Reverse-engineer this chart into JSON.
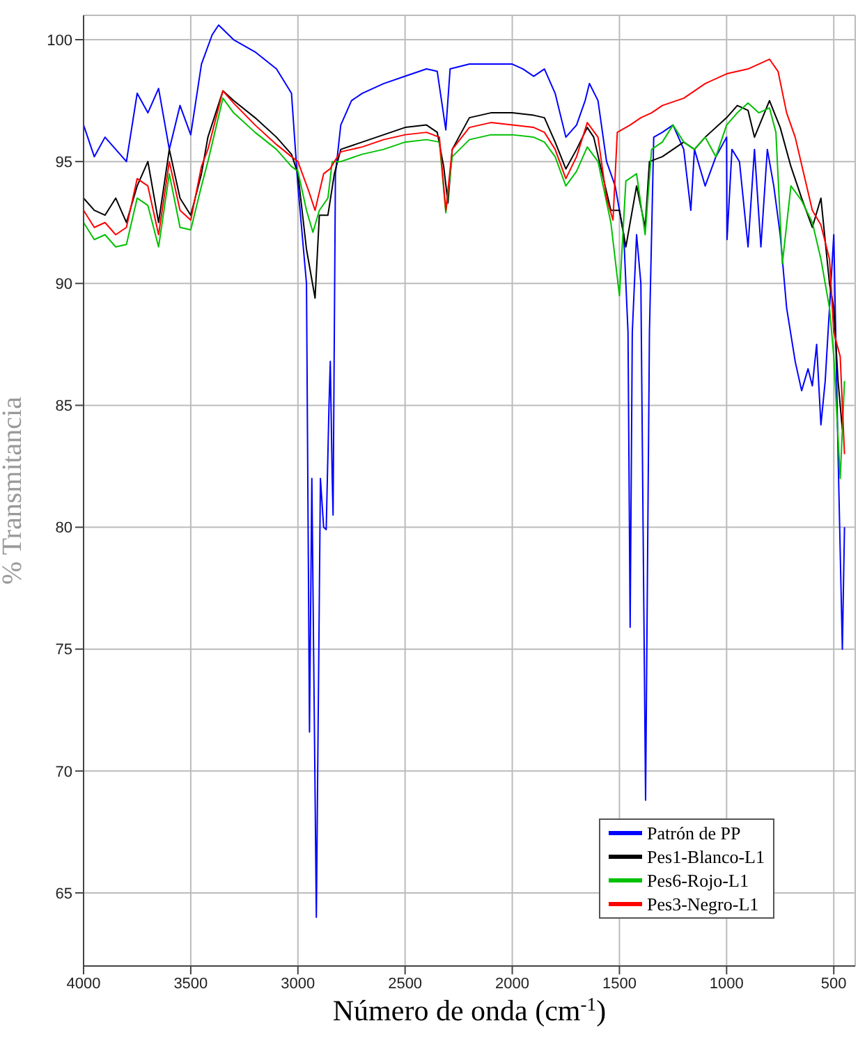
{
  "chart_data": {
    "type": "line",
    "xlabel": "Número de onda (cm$^{-1}$)",
    "ylabel": "% Transmitancia",
    "xlim": [
      4000,
      400
    ],
    "xticks": [
      4000,
      3500,
      3000,
      2500,
      2000,
      1500,
      1000,
      500
    ],
    "ylim": [
      62,
      101
    ],
    "yticks": [
      65,
      70,
      75,
      80,
      85,
      90,
      95,
      100
    ],
    "grid": true,
    "legend": "bottom right",
    "marker": "none",
    "line_style": "solid",
    "series": [
      {
        "name": "Patrón de PP",
        "color": "#0000ff",
        "x": [
          4000,
          3950,
          3900,
          3850,
          3800,
          3750,
          3700,
          3650,
          3600,
          3550,
          3500,
          3450,
          3400,
          3370,
          3300,
          3200,
          3100,
          3030,
          3000,
          2960,
          2946,
          2935,
          2914,
          2895,
          2880,
          2868,
          2855,
          2849,
          2840,
          2836,
          2825,
          2800,
          2750,
          2700,
          2600,
          2500,
          2400,
          2350,
          2330,
          2310,
          2290,
          2200,
          2100,
          2000,
          1950,
          1900,
          1850,
          1800,
          1750,
          1700,
          1660,
          1640,
          1600,
          1560,
          1520,
          1480,
          1460,
          1450,
          1440,
          1420,
          1400,
          1378,
          1360,
          1340,
          1300,
          1250,
          1200,
          1167,
          1150,
          1100,
          1050,
          1000,
          998,
          975,
          940,
          900,
          870,
          840,
          810,
          780,
          750,
          720,
          680,
          650,
          620,
          600,
          580,
          560,
          540,
          500,
          480,
          460,
          450
        ],
        "values": [
          96.5,
          95.2,
          96,
          95.5,
          95,
          97.8,
          97,
          98,
          95.5,
          97.3,
          96.1,
          99,
          100.2,
          100.6,
          100,
          99.5,
          98.8,
          97.8,
          94,
          90,
          71.6,
          82,
          64,
          82,
          80,
          79.9,
          85,
          86.8,
          82,
          80.5,
          94.5,
          96.5,
          97.5,
          97.8,
          98.2,
          98.5,
          98.8,
          98.7,
          97.5,
          96.3,
          98.8,
          99,
          99,
          99,
          98.8,
          98.5,
          98.8,
          97.8,
          96,
          96.5,
          97.5,
          98.2,
          97.5,
          95,
          94,
          92,
          88,
          75.9,
          88,
          92,
          90,
          68.8,
          88,
          96,
          96.2,
          96.5,
          95.5,
          93,
          95.5,
          94,
          95.2,
          96,
          91.8,
          95.5,
          95,
          91.5,
          95.5,
          91.5,
          95.5,
          94,
          92,
          89,
          86.8,
          85.6,
          86.5,
          85.8,
          87.5,
          84.2,
          86,
          92,
          83,
          75,
          80
        ]
      },
      {
        "name": "Pes1-Blanco-L1",
        "color": "#000000",
        "x": [
          4000,
          3950,
          3900,
          3850,
          3800,
          3750,
          3700,
          3650,
          3600,
          3550,
          3500,
          3450,
          3420,
          3350,
          3300,
          3200,
          3100,
          3030,
          3000,
          2960,
          2920,
          2900,
          2860,
          2830,
          2800,
          2700,
          2600,
          2500,
          2400,
          2350,
          2320,
          2300,
          2280,
          2200,
          2100,
          2000,
          1900,
          1850,
          1800,
          1750,
          1700,
          1650,
          1620,
          1580,
          1540,
          1500,
          1470,
          1420,
          1380,
          1360,
          1300,
          1200,
          1150,
          1100,
          1000,
          950,
          900,
          870,
          800,
          750,
          700,
          650,
          600,
          560,
          520,
          500,
          480,
          460
        ],
        "values": [
          93.5,
          93,
          92.8,
          93.5,
          92.5,
          94,
          95,
          92.5,
          95.5,
          93.5,
          92.8,
          94.5,
          96,
          97.9,
          97.5,
          96.8,
          96,
          95.3,
          94.5,
          91.4,
          89.4,
          92.8,
          92.8,
          94.5,
          95.5,
          95.8,
          96.1,
          96.4,
          96.5,
          96.2,
          94.8,
          93.3,
          95.5,
          96.8,
          97,
          97,
          96.9,
          96.8,
          95.8,
          94.7,
          95.5,
          96.4,
          96,
          94.5,
          93,
          93,
          91.5,
          94,
          92.3,
          95,
          95.2,
          95.8,
          95.5,
          96,
          96.8,
          97.3,
          97.1,
          96,
          97.5,
          96.4,
          94.8,
          93.5,
          92.3,
          93.5,
          90,
          89,
          86,
          84
        ]
      },
      {
        "name": "Pes6-Rojo-L1",
        "color": "#00c000",
        "x": [
          4000,
          3950,
          3900,
          3850,
          3800,
          3750,
          3700,
          3650,
          3600,
          3550,
          3500,
          3450,
          3420,
          3350,
          3300,
          3200,
          3100,
          3030,
          3000,
          2960,
          2930,
          2900,
          2860,
          2840,
          2800,
          2700,
          2600,
          2500,
          2400,
          2340,
          2310,
          2280,
          2200,
          2100,
          2000,
          1900,
          1850,
          1800,
          1750,
          1700,
          1650,
          1600,
          1540,
          1500,
          1470,
          1420,
          1380,
          1350,
          1300,
          1250,
          1200,
          1150,
          1100,
          1050,
          1000,
          950,
          900,
          850,
          800,
          770,
          740,
          700,
          650,
          600,
          560,
          520,
          500,
          470,
          450
        ],
        "values": [
          92.5,
          91.8,
          92,
          91.5,
          91.6,
          93.5,
          93.2,
          91.5,
          94.5,
          92.3,
          92.2,
          94,
          95,
          97.6,
          97,
          96.2,
          95.5,
          94.8,
          94.6,
          93,
          92.1,
          93,
          93.5,
          95,
          95,
          95.3,
          95.5,
          95.8,
          95.9,
          95.8,
          92.9,
          95.2,
          95.9,
          96.1,
          96.1,
          96,
          95.8,
          95.2,
          94,
          94.6,
          95.6,
          95,
          92.5,
          89.5,
          94.2,
          94.5,
          92,
          95.5,
          95.8,
          96.5,
          95.8,
          95.5,
          96,
          95.2,
          96.5,
          97,
          97.4,
          97,
          97.2,
          96.2,
          90.8,
          94,
          93.4,
          92.5,
          91,
          89,
          87,
          82,
          86
        ]
      },
      {
        "name": "Pes3-Negro-L1",
        "color": "#ff0000",
        "x": [
          4000,
          3950,
          3900,
          3850,
          3800,
          3750,
          3700,
          3650,
          3600,
          3550,
          3500,
          3450,
          3420,
          3350,
          3300,
          3200,
          3100,
          3030,
          3000,
          2950,
          2920,
          2880,
          2850,
          2830,
          2800,
          2700,
          2600,
          2500,
          2400,
          2340,
          2310,
          2280,
          2200,
          2100,
          2000,
          1900,
          1850,
          1800,
          1750,
          1700,
          1650,
          1600,
          1560,
          1530,
          1510,
          1450,
          1400,
          1350,
          1300,
          1200,
          1100,
          1000,
          900,
          800,
          760,
          720,
          680,
          640,
          600,
          560,
          520,
          500,
          470,
          450
        ],
        "values": [
          93,
          92.3,
          92.5,
          92,
          92.3,
          94.3,
          94,
          92,
          95,
          93,
          92.6,
          94.8,
          95.5,
          97.9,
          97.4,
          96.5,
          95.7,
          95.2,
          95,
          93.8,
          93,
          94.5,
          94.7,
          95,
          95.4,
          95.6,
          95.9,
          96.1,
          96.2,
          96,
          93,
          95.5,
          96.4,
          96.6,
          96.5,
          96.4,
          96.2,
          95.5,
          94.3,
          95.2,
          96.6,
          96,
          93.5,
          92.6,
          96.2,
          96.5,
          96.8,
          97,
          97.3,
          97.6,
          98.2,
          98.6,
          98.8,
          99.2,
          98.7,
          97,
          96,
          94.5,
          93,
          92.4,
          91,
          88,
          87,
          83
        ]
      }
    ]
  }
}
